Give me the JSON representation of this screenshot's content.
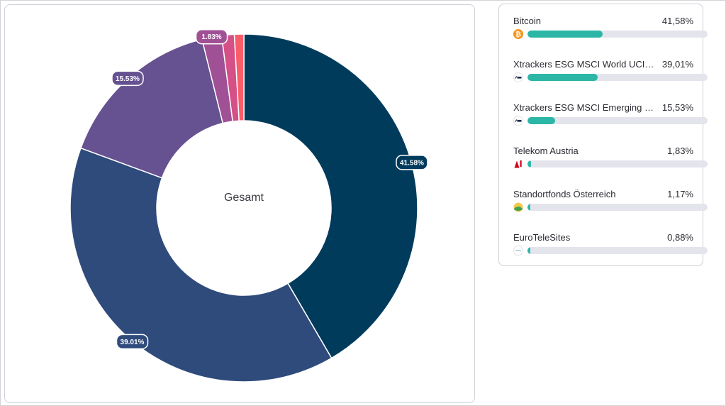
{
  "chart_data": {
    "type": "pie",
    "center_label": "Gesamt",
    "slices": [
      {
        "name": "Bitcoin",
        "value": 41.58,
        "label": "41.58%",
        "color": "#003b5c"
      },
      {
        "name": "Xtrackers ESG MSCI World UCITS ETF",
        "value": 39.01,
        "label": "39.01%",
        "color": "#2f4b7c"
      },
      {
        "name": "Xtrackers ESG MSCI Emerging Markets",
        "value": 15.53,
        "label": "15.53%",
        "color": "#665191"
      },
      {
        "name": "Telekom Austria",
        "value": 1.83,
        "label": "1.83%",
        "color": "#a05195"
      },
      {
        "name": "Standortfonds Österreich",
        "value": 1.17,
        "label": "",
        "color": "#d45087"
      },
      {
        "name": "EuroTeleSites",
        "value": 0.88,
        "label": "",
        "color": "#f95d6a"
      }
    ]
  },
  "legend": {
    "items": [
      {
        "name": "Bitcoin",
        "pct": "41,58%",
        "value": 41.58,
        "icon": "bitcoin-icon"
      },
      {
        "name": "Xtrackers ESG MSCI World UCITS ETF ...",
        "pct": "39,01%",
        "value": 39.01,
        "icon": "dws-icon"
      },
      {
        "name": "Xtrackers ESG MSCI Emerging Markets...",
        "pct": "15,53%",
        "value": 15.53,
        "icon": "dws-icon"
      },
      {
        "name": "Telekom Austria",
        "pct": "1,83%",
        "value": 1.83,
        "icon": "a1-icon"
      },
      {
        "name": "Standortfonds Österreich",
        "pct": "1,17%",
        "value": 1.17,
        "icon": "standortfonds-icon"
      },
      {
        "name": "EuroTeleSites",
        "pct": "0,88%",
        "value": 0.88,
        "icon": "eurotelesites-icon"
      }
    ],
    "bar_color": "#2bb6a6",
    "track_color": "#e4e4ec"
  }
}
